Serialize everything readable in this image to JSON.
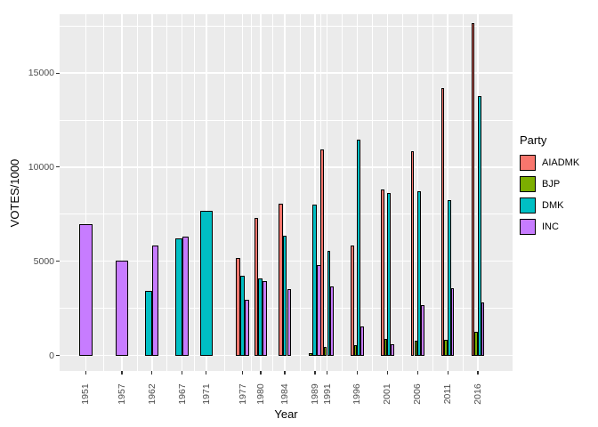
{
  "figure": {
    "background": "#FFFFFF",
    "panel_background": "#EBEBEB",
    "gridline_color": "#FFFFFF",
    "tick_text_color": "#4D4D4D",
    "bar_outline_color": "#000000"
  },
  "x_axis": {
    "title": "Year",
    "tick_labels": [
      "1951",
      "1957",
      "1962",
      "1967",
      "1971",
      "1977",
      "1980",
      "1984",
      "1989",
      "1991",
      "1996",
      "2001",
      "2006",
      "2011",
      "2016"
    ]
  },
  "y_axis": {
    "title": "VOTES/1000",
    "tick_labels": [
      "0",
      "5000",
      "10000",
      "15000"
    ]
  },
  "legend": {
    "title": "Party",
    "items": [
      {
        "label": "AIADMK",
        "color": "#F8766D"
      },
      {
        "label": "BJP",
        "color": "#7CAE00"
      },
      {
        "label": "DMK",
        "color": "#00BFC4"
      },
      {
        "label": "INC",
        "color": "#C77CFF"
      }
    ]
  },
  "chart_data": {
    "type": "bar",
    "title": "",
    "xlabel": "Year",
    "ylabel": "VOTES/1000",
    "legend_title": "Party",
    "legend_position": "right",
    "grid": true,
    "categories": [
      1951,
      1957,
      1962,
      1967,
      1971,
      1977,
      1980,
      1984,
      1989,
      1991,
      1996,
      2001,
      2006,
      2011,
      2016
    ],
    "series": [
      {
        "name": "AIADMK",
        "color": "#F8766D",
        "values": [
          null,
          null,
          null,
          null,
          null,
          5170,
          7300,
          8040,
          null,
          10920,
          5840,
          8800,
          10840,
          14180,
          17650
        ]
      },
      {
        "name": "BJP",
        "color": "#7CAE00",
        "values": [
          null,
          null,
          null,
          null,
          null,
          null,
          null,
          null,
          130,
          460,
          530,
          870,
          790,
          840,
          1240
        ]
      },
      {
        "name": "DMK",
        "color": "#00BFC4",
        "values": [
          null,
          null,
          3410,
          6200,
          7690,
          4230,
          4100,
          6340,
          8010,
          5540,
          11440,
          8610,
          8720,
          8250,
          13760
        ]
      },
      {
        "name": "INC",
        "color": "#C77CFF",
        "values": [
          6950,
          5020,
          5840,
          6310,
          null,
          2970,
          3950,
          3520,
          4780,
          3680,
          1550,
          600,
          2680,
          3550,
          2810
        ]
      }
    ],
    "ylim": [
      0,
      18500
    ],
    "yticks": [
      0,
      5000,
      10000,
      15000
    ],
    "yticks_minor": [
      2500,
      7500,
      12500,
      17500
    ]
  }
}
